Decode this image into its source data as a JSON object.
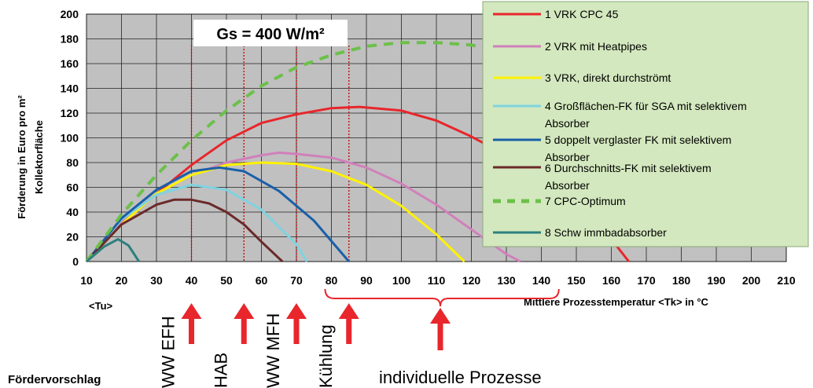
{
  "chart_data": {
    "type": "line",
    "annotation": "Gs = 400 W/m²",
    "ylabel_line1": "Förderung in Euro pro m²",
    "ylabel_line2": "Kollektorfläche",
    "xlabel": "Mittlere Prozesstemperatur <Tk> in °C",
    "tu_label": "<Tu>",
    "xlim": [
      10,
      210
    ],
    "ylim": [
      0,
      200
    ],
    "x_ticks": [
      10,
      20,
      30,
      40,
      50,
      60,
      70,
      80,
      90,
      100,
      110,
      120,
      130,
      140,
      150,
      160,
      170,
      180,
      190,
      200,
      210
    ],
    "y_ticks": [
      0,
      20,
      40,
      60,
      80,
      100,
      120,
      140,
      160,
      180,
      200
    ],
    "series": [
      {
        "name": "1  VRK CPC 45",
        "color": "#e8262b",
        "dash": false,
        "x": [
          10,
          20,
          30,
          40,
          50,
          60,
          70,
          80,
          88,
          100,
          110,
          120,
          130,
          140,
          150,
          160,
          165
        ],
        "y": [
          0,
          30,
          55,
          78,
          98,
          112,
          119,
          124,
          125,
          122,
          114,
          101,
          86,
          68,
          45,
          18,
          0
        ]
      },
      {
        "name": "2 VRK mit Heatpipes",
        "color": "#d080bb",
        "dash": false,
        "x": [
          10,
          20,
          30,
          40,
          50,
          60,
          65,
          70,
          80,
          90,
          100,
          110,
          120,
          130,
          134
        ],
        "y": [
          0,
          32,
          55,
          70,
          80,
          86,
          88,
          87,
          84,
          76,
          63,
          46,
          26,
          6,
          0
        ]
      },
      {
        "name": "3 VRK, direkt durchströmt",
        "color": "#fff200",
        "dash": false,
        "x": [
          10,
          20,
          30,
          40,
          50,
          60,
          70,
          80,
          90,
          100,
          110,
          118
        ],
        "y": [
          0,
          30,
          55,
          70,
          78,
          80,
          79,
          73,
          62,
          45,
          22,
          0
        ]
      },
      {
        "name": "4 Großflächen-FK für SGA mit selektivem Absorber",
        "color": "#7fd3e0",
        "dash": false,
        "x": [
          10,
          20,
          30,
          40,
          50,
          60,
          70,
          73
        ],
        "y": [
          0,
          34,
          54,
          62,
          58,
          42,
          14,
          0
        ]
      },
      {
        "name": "5 doppelt verglaster FK mit selektivem Absorber",
        "color": "#1a5fa8",
        "dash": false,
        "x": [
          10,
          20,
          30,
          40,
          48,
          55,
          65,
          75,
          85
        ],
        "y": [
          0,
          35,
          58,
          73,
          76,
          73,
          57,
          33,
          0
        ]
      },
      {
        "name": "6 Durchschnitts-FK mit selektivem Absorber",
        "color": "#6b2a2a",
        "dash": false,
        "x": [
          10,
          20,
          30,
          35,
          40,
          45,
          50,
          55,
          60,
          66
        ],
        "y": [
          0,
          30,
          46,
          50,
          50,
          47,
          40,
          30,
          16,
          0
        ]
      },
      {
        "name": "7 CPC-Optimum",
        "color": "#6cc04a",
        "dash": true,
        "x": [
          10,
          20,
          30,
          40,
          50,
          60,
          70,
          80,
          90,
          100,
          110,
          120,
          130,
          140,
          150,
          160,
          170,
          180,
          190,
          200
        ],
        "y": [
          0,
          38,
          70,
          98,
          122,
          142,
          157,
          167,
          174,
          177,
          177,
          175,
          170,
          161,
          148,
          131,
          109,
          83,
          50,
          10
        ]
      },
      {
        "name": "8 Schw immbadabsorber",
        "color": "#2e7f7f",
        "dash": false,
        "x": [
          10,
          15,
          19,
          22,
          25
        ],
        "y": [
          0,
          12,
          18,
          13,
          0
        ]
      }
    ],
    "vlines": [
      40,
      55,
      70,
      85
    ],
    "arrow_labels": [
      {
        "x": 40,
        "text": "WW EFH"
      },
      {
        "x": 55,
        "text": "HAB"
      },
      {
        "x": 70,
        "text": "WW MFH"
      },
      {
        "x": 85,
        "text": "Kühlung"
      }
    ],
    "bracket_label": "individuelle Prozesse",
    "proposal_label": "Fördervorschlag"
  }
}
